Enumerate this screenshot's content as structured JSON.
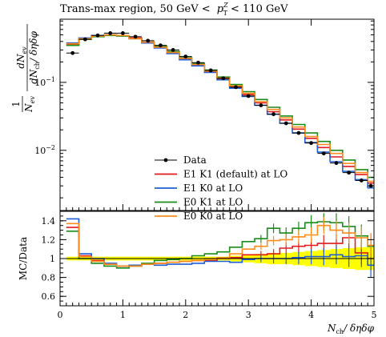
{
  "chart_data": [
    {
      "type": "line",
      "panel": "main",
      "title_text": "Trans-max region, 50 GeV <",
      "title_math": "p",
      "title_sup": "Z",
      "title_sub": "T",
      "title_tail": "< 110 GeV",
      "ylabel_num": "dN",
      "ylabel_num_sub": "ev",
      "ylabel_den": "dN",
      "ylabel_den_sub": "ch",
      "ylabel_den_tail": "/ δηδφ",
      "ylabel_frac_num": "1",
      "ylabel_frac_den": "N",
      "ylabel_frac_den_sub": "ev",
      "yscale": "log",
      "ylim": [
        0.0013,
        0.85
      ],
      "xlim": [
        0,
        5
      ],
      "yticks": [
        {
          "value": 0.1,
          "mantissa": "10",
          "exp": "−1"
        },
        {
          "value": 0.01,
          "mantissa": "10",
          "exp": "−2"
        }
      ],
      "legend": "bottom-center",
      "x_edges": [
        0.1,
        0.3,
        0.5,
        0.7,
        0.9,
        1.1,
        1.3,
        1.5,
        1.7,
        1.9,
        2.1,
        2.3,
        2.5,
        2.7,
        2.9,
        3.1,
        3.3,
        3.5,
        3.7,
        3.9,
        4.1,
        4.3,
        4.5,
        4.7,
        4.9,
        5.0
      ],
      "data": {
        "name": "Data",
        "color": "#000000",
        "x": [
          0.2,
          0.4,
          0.6,
          0.8,
          1.0,
          1.2,
          1.4,
          1.6,
          1.8,
          2.0,
          2.2,
          2.4,
          2.6,
          2.8,
          3.0,
          3.2,
          3.4,
          3.6,
          3.8,
          4.0,
          4.2,
          4.4,
          4.6,
          4.8,
          4.95
        ],
        "y": [
          0.27,
          0.43,
          0.49,
          0.53,
          0.53,
          0.47,
          0.41,
          0.35,
          0.3,
          0.24,
          0.195,
          0.15,
          0.115,
          0.085,
          0.063,
          0.046,
          0.034,
          0.025,
          0.018,
          0.0128,
          0.009,
          0.0065,
          0.0047,
          0.0036,
          0.003
        ]
      },
      "series": [
        {
          "name": "E1 K1 (default) at LO",
          "color": "#e41a1c",
          "values": [
            0.36,
            0.44,
            0.48,
            0.5,
            0.49,
            0.45,
            0.39,
            0.33,
            0.27,
            0.22,
            0.18,
            0.143,
            0.113,
            0.086,
            0.066,
            0.05,
            0.037,
            0.028,
            0.0205,
            0.015,
            0.011,
            0.008,
            0.0058,
            0.0044,
            0.0033
          ]
        },
        {
          "name": "E1 K0 at LO",
          "color": "#1f5fd6",
          "values": [
            0.38,
            0.45,
            0.49,
            0.5,
            0.49,
            0.44,
            0.38,
            0.32,
            0.265,
            0.215,
            0.175,
            0.14,
            0.109,
            0.082,
            0.062,
            0.046,
            0.034,
            0.025,
            0.018,
            0.013,
            0.0094,
            0.0068,
            0.0049,
            0.0037,
            0.0028
          ]
        },
        {
          "name": "E0 K1 at LO",
          "color": "#1a8c1a",
          "values": [
            0.35,
            0.43,
            0.47,
            0.49,
            0.48,
            0.44,
            0.39,
            0.34,
            0.285,
            0.23,
            0.19,
            0.152,
            0.12,
            0.093,
            0.073,
            0.056,
            0.043,
            0.032,
            0.024,
            0.018,
            0.0135,
            0.01,
            0.0072,
            0.0052,
            0.004
          ]
        },
        {
          "name": "E0 K0 at LO",
          "color": "#ff8c1a",
          "values": [
            0.37,
            0.44,
            0.48,
            0.5,
            0.49,
            0.44,
            0.39,
            0.33,
            0.275,
            0.225,
            0.183,
            0.147,
            0.116,
            0.089,
            0.069,
            0.052,
            0.04,
            0.03,
            0.022,
            0.016,
            0.0122,
            0.009,
            0.0064,
            0.0047,
            0.0035
          ]
        }
      ]
    },
    {
      "type": "line",
      "panel": "ratio",
      "ylabel": "MC/Data",
      "xlabel_main": "N",
      "xlabel_sub": "ch",
      "xlabel_tail": "/ δηδφ",
      "ylim": [
        0.5,
        1.5
      ],
      "xlim": [
        0,
        5
      ],
      "yticks": [
        0.6,
        0.8,
        1,
        1.2,
        1.4
      ],
      "xticks": [
        0,
        1,
        2,
        3,
        4,
        5
      ],
      "band_color": "#ffff00",
      "band_halfwidth": [
        0.02,
        0.02,
        0.02,
        0.02,
        0.02,
        0.02,
        0.02,
        0.02,
        0.02,
        0.02,
        0.02,
        0.02,
        0.02,
        0.03,
        0.04,
        0.05,
        0.06,
        0.06,
        0.07,
        0.08,
        0.09,
        0.1,
        0.11,
        0.12,
        0.12
      ],
      "series": [
        {
          "name": "E1 K1 (default) at LO",
          "color": "#e41a1c",
          "values": [
            1.33,
            1.03,
            0.98,
            0.94,
            0.92,
            0.93,
            0.94,
            0.95,
            0.96,
            0.97,
            0.98,
            0.98,
            1.0,
            1.01,
            1.04,
            1.04,
            1.05,
            1.11,
            1.13,
            1.14,
            1.16,
            1.16,
            1.22,
            1.06,
            1.0
          ],
          "err": [
            0,
            0,
            0,
            0,
            0,
            0,
            0,
            0,
            0,
            0,
            0,
            0,
            0,
            0,
            0,
            0.04,
            0.05,
            0.06,
            0.07,
            0.08,
            0.09,
            0.1,
            0.11,
            0.12,
            0.13
          ]
        },
        {
          "name": "E1 K0 at LO",
          "color": "#1f5fd6",
          "values": [
            1.42,
            1.05,
            1.0,
            0.95,
            0.92,
            0.93,
            0.94,
            0.93,
            0.94,
            0.94,
            0.95,
            0.97,
            0.97,
            0.96,
            0.99,
            1.0,
            1.0,
            1.0,
            1.01,
            1.02,
            1.02,
            1.04,
            1.02,
            1.03,
            0.93
          ],
          "err": [
            0,
            0,
            0,
            0,
            0,
            0,
            0,
            0,
            0,
            0,
            0,
            0,
            0,
            0,
            0,
            0.04,
            0.05,
            0.06,
            0.07,
            0.08,
            0.09,
            0.1,
            0.11,
            0.12,
            0.13
          ]
        },
        {
          "name": "E0 K1 at LO",
          "color": "#1a8c1a",
          "values": [
            1.29,
            1.0,
            0.95,
            0.92,
            0.9,
            0.92,
            0.95,
            0.98,
            0.99,
            1.0,
            1.03,
            1.05,
            1.07,
            1.12,
            1.18,
            1.21,
            1.32,
            1.27,
            1.32,
            1.38,
            1.39,
            1.38,
            1.34,
            1.24,
            1.13
          ],
          "err": [
            0,
            0,
            0,
            0,
            0,
            0,
            0,
            0,
            0,
            0,
            0,
            0,
            0,
            0,
            0,
            0.04,
            0.05,
            0.06,
            0.07,
            0.08,
            0.09,
            0.1,
            0.11,
            0.12,
            0.13
          ]
        },
        {
          "name": "E0 K0 at LO",
          "color": "#ff8c1a",
          "values": [
            1.37,
            1.02,
            0.97,
            0.94,
            0.92,
            0.92,
            0.94,
            0.95,
            0.96,
            0.97,
            0.98,
            1.0,
            1.01,
            1.05,
            1.1,
            1.13,
            1.19,
            1.2,
            1.23,
            1.25,
            1.35,
            1.3,
            1.27,
            1.22,
            1.14
          ],
          "err": [
            0,
            0,
            0,
            0,
            0,
            0,
            0,
            0,
            0,
            0,
            0,
            0,
            0,
            0,
            0,
            0.04,
            0.05,
            0.06,
            0.07,
            0.08,
            0.09,
            0.1,
            0.11,
            0.12,
            0.13
          ]
        }
      ]
    }
  ]
}
